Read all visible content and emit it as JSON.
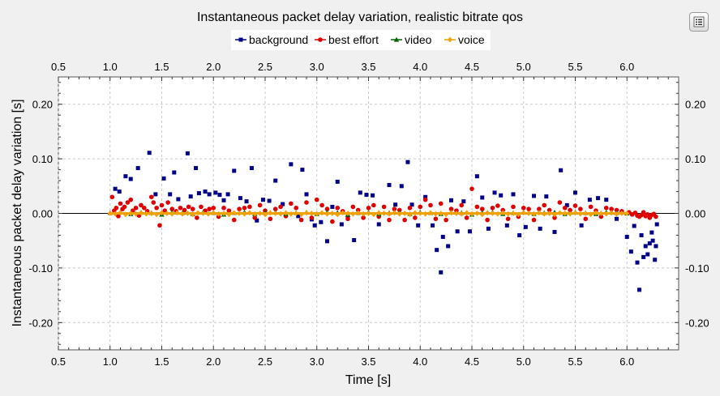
{
  "chart_data": {
    "type": "scatter",
    "title": "Instantaneous packet delay variation, realistic bitrate qos",
    "xlabel": "Time [s]",
    "ylabel": "Instantaneous packet delay variation [s]",
    "xlim": [
      0.5,
      6.5
    ],
    "ylim": [
      -0.25,
      0.25
    ],
    "xticks": [
      "0.5",
      "1.0",
      "1.5",
      "2.0",
      "2.5",
      "3.0",
      "3.5",
      "4.0",
      "4.5",
      "5.0",
      "5.5",
      "6.0"
    ],
    "yticks": [
      "0.20",
      "0.10",
      "0.00",
      "-0.10",
      "-0.20"
    ],
    "grid": true,
    "legend_position": "top-center",
    "series": [
      {
        "name": "background",
        "color": "#00008b",
        "marker": "square",
        "x": [
          1.05,
          1.09,
          1.15,
          1.2,
          1.27,
          1.38,
          1.44,
          1.52,
          1.58,
          1.62,
          1.66,
          1.75,
          1.78,
          1.83,
          1.86,
          1.92,
          1.96,
          2.02,
          2.06,
          2.1,
          2.14,
          2.2,
          2.26,
          2.32,
          2.37,
          2.42,
          2.48,
          2.54,
          2.6,
          2.67,
          2.75,
          2.82,
          2.86,
          2.9,
          2.95,
          2.98,
          3.04,
          3.1,
          3.15,
          3.2,
          3.24,
          3.3,
          3.36,
          3.42,
          3.48,
          3.54,
          3.6,
          3.7,
          3.76,
          3.82,
          3.88,
          3.92,
          3.98,
          4.05,
          4.12,
          4.16,
          4.2,
          4.22,
          4.27,
          4.3,
          4.36,
          4.42,
          4.48,
          4.55,
          4.6,
          4.66,
          4.72,
          4.78,
          4.84,
          4.9,
          4.96,
          5.02,
          5.1,
          5.16,
          5.22,
          5.3,
          5.36,
          5.42,
          5.5,
          5.56,
          5.64,
          5.72,
          5.8,
          5.9,
          6.0,
          6.04,
          6.07,
          6.1,
          6.12,
          6.14,
          6.16,
          6.18,
          6.2,
          6.22,
          6.24,
          6.25,
          6.27,
          6.28,
          6.29
        ],
        "y": [
          0.045,
          0.04,
          0.068,
          0.063,
          0.083,
          0.111,
          0.035,
          0.064,
          0.035,
          0.075,
          0.026,
          0.11,
          0.031,
          0.083,
          0.037,
          0.04,
          0.035,
          0.038,
          0.034,
          0.024,
          0.035,
          0.078,
          0.028,
          0.022,
          0.083,
          -0.013,
          0.025,
          0.023,
          0.06,
          0.017,
          0.09,
          -0.005,
          0.08,
          0.035,
          -0.011,
          -0.022,
          -0.016,
          -0.051,
          0.012,
          0.058,
          -0.02,
          -0.008,
          -0.049,
          0.038,
          0.034,
          0.033,
          -0.02,
          0.052,
          0.016,
          0.05,
          0.094,
          0.016,
          -0.022,
          0.03,
          -0.022,
          -0.067,
          -0.108,
          -0.043,
          -0.06,
          0.024,
          -0.033,
          0.022,
          -0.033,
          0.068,
          0.029,
          -0.028,
          0.038,
          0.033,
          -0.022,
          0.035,
          -0.04,
          -0.025,
          0.032,
          -0.028,
          0.031,
          -0.034,
          0.079,
          0.015,
          0.038,
          -0.022,
          0.025,
          0.028,
          0.025,
          -0.01,
          -0.043,
          -0.07,
          -0.023,
          -0.09,
          -0.14,
          -0.04,
          -0.08,
          -0.06,
          -0.075,
          -0.055,
          -0.035,
          -0.05,
          -0.085,
          -0.06,
          -0.02
        ]
      },
      {
        "name": "best effort",
        "color": "#e00000",
        "marker": "circle",
        "x": [
          1.02,
          1.04,
          1.06,
          1.08,
          1.1,
          1.12,
          1.14,
          1.17,
          1.2,
          1.22,
          1.25,
          1.28,
          1.3,
          1.33,
          1.36,
          1.4,
          1.42,
          1.45,
          1.48,
          1.5,
          1.53,
          1.56,
          1.6,
          1.64,
          1.68,
          1.72,
          1.76,
          1.8,
          1.84,
          1.88,
          1.92,
          1.96,
          2.0,
          2.05,
          2.1,
          2.15,
          2.2,
          2.25,
          2.3,
          2.35,
          2.4,
          2.45,
          2.5,
          2.55,
          2.6,
          2.65,
          2.7,
          2.75,
          2.8,
          2.85,
          2.9,
          2.95,
          3.0,
          3.05,
          3.1,
          3.15,
          3.2,
          3.25,
          3.3,
          3.35,
          3.4,
          3.45,
          3.5,
          3.55,
          3.6,
          3.65,
          3.7,
          3.75,
          3.8,
          3.85,
          3.9,
          3.95,
          4.0,
          4.05,
          4.1,
          4.15,
          4.2,
          4.25,
          4.3,
          4.35,
          4.4,
          4.45,
          4.5,
          4.55,
          4.6,
          4.65,
          4.7,
          4.75,
          4.8,
          4.85,
          4.9,
          4.95,
          5.0,
          5.05,
          5.1,
          5.15,
          5.2,
          5.25,
          5.3,
          5.35,
          5.4,
          5.45,
          5.5,
          5.55,
          5.6,
          5.65,
          5.7,
          5.75,
          5.8,
          5.85,
          5.9,
          5.95,
          6.02,
          6.05,
          6.08,
          6.1,
          6.12,
          6.14,
          6.16,
          6.18,
          6.2,
          6.22,
          6.24,
          6.26,
          6.28
        ],
        "y": [
          0.03,
          0.005,
          0.01,
          -0.005,
          0.018,
          0.008,
          0.012,
          0.02,
          0.025,
          0.005,
          0.01,
          -0.004,
          0.015,
          0.01,
          0.004,
          0.03,
          0.02,
          0.01,
          -0.022,
          0.015,
          0.005,
          0.02,
          0.008,
          0.004,
          0.01,
          0.006,
          0.012,
          0.008,
          -0.008,
          0.012,
          0.005,
          0.008,
          0.01,
          -0.006,
          0.01,
          0.005,
          -0.012,
          0.008,
          0.01,
          0.012,
          -0.008,
          0.015,
          0.005,
          -0.01,
          0.008,
          0.012,
          -0.005,
          0.018,
          0.01,
          -0.012,
          0.02,
          -0.008,
          0.025,
          0.015,
          0.008,
          -0.015,
          0.01,
          0.004,
          -0.01,
          0.012,
          0.006,
          -0.008,
          0.01,
          0.015,
          -0.006,
          0.012,
          -0.012,
          0.008,
          0.006,
          -0.012,
          0.01,
          -0.008,
          0.012,
          0.025,
          0.015,
          -0.01,
          0.018,
          -0.012,
          0.008,
          0.005,
          0.015,
          -0.008,
          0.045,
          0.012,
          0.008,
          -0.012,
          0.01,
          0.014,
          0.006,
          -0.01,
          0.012,
          -0.006,
          0.01,
          0.008,
          -0.012,
          0.008,
          0.015,
          0.006,
          -0.008,
          0.02,
          0.01,
          0.006,
          0.014,
          0.008,
          -0.01,
          0.012,
          0.005,
          -0.006,
          0.01,
          0.008,
          0.006,
          0.004,
          0.002,
          -0.002,
          0.001,
          -0.004,
          -0.006,
          -0.003,
          0.002,
          -0.005,
          -0.002,
          -0.008,
          -0.003,
          -0.001,
          -0.006
        ]
      },
      {
        "name": "video",
        "color": "#006400",
        "marker": "triangle",
        "x": [
          1.0,
          1.1,
          1.2,
          1.3,
          1.4,
          1.5,
          1.6,
          1.7,
          1.8,
          1.9,
          2.0,
          2.1,
          2.2,
          2.3,
          2.4,
          2.5,
          2.6,
          2.7,
          2.8,
          2.9,
          3.0,
          3.1,
          3.2,
          3.3,
          3.4,
          3.5,
          3.6,
          3.7,
          3.8,
          3.9,
          4.0,
          4.1,
          4.2,
          4.3,
          4.4,
          4.5,
          4.6,
          4.7,
          4.8,
          4.9,
          5.0,
          5.1,
          5.2,
          5.3,
          5.4,
          5.5,
          5.6,
          5.7,
          5.8,
          5.9,
          6.0
        ],
        "y": [
          0.001,
          0.002,
          -0.001,
          0.002,
          0.001,
          -0.002,
          0.002,
          0.001,
          -0.001,
          0.002,
          0.001,
          -0.002,
          0.001,
          0.002,
          -0.001,
          0.001,
          0.002,
          -0.001,
          0.001,
          0.002,
          -0.001,
          0.002,
          0.001,
          -0.002,
          0.001,
          0.002,
          -0.001,
          0.001,
          0.002,
          -0.001,
          0.002,
          0.001,
          -0.001,
          0.002,
          0.001,
          -0.002,
          0.001,
          0.002,
          -0.001,
          0.001,
          0.002,
          -0.001,
          0.001,
          0.002,
          -0.001,
          0.002,
          0.001,
          -0.001,
          0.002,
          0.001,
          0.0
        ]
      },
      {
        "name": "voice",
        "color": "#f0a000",
        "marker": "diamond",
        "x": [
          1.0,
          1.05,
          1.1,
          1.15,
          1.2,
          1.25,
          1.3,
          1.35,
          1.4,
          1.45,
          1.5,
          1.55,
          1.6,
          1.65,
          1.7,
          1.75,
          1.8,
          1.85,
          1.9,
          1.95,
          2.0,
          2.05,
          2.1,
          2.15,
          2.2,
          2.25,
          2.3,
          2.35,
          2.4,
          2.45,
          2.5,
          2.55,
          2.6,
          2.65,
          2.7,
          2.75,
          2.8,
          2.85,
          2.9,
          2.95,
          3.0,
          3.05,
          3.1,
          3.15,
          3.2,
          3.25,
          3.3,
          3.35,
          3.4,
          3.45,
          3.5,
          3.55,
          3.6,
          3.65,
          3.7,
          3.75,
          3.8,
          3.85,
          3.9,
          3.95,
          4.0,
          4.05,
          4.1,
          4.15,
          4.2,
          4.25,
          4.3,
          4.35,
          4.4,
          4.45,
          4.5,
          4.55,
          4.6,
          4.65,
          4.7,
          4.75,
          4.8,
          4.85,
          4.9,
          4.95,
          5.0,
          5.05,
          5.1,
          5.15,
          5.2,
          5.25,
          5.3,
          5.35,
          5.4,
          5.45,
          5.5,
          5.55,
          5.6,
          5.65,
          5.7,
          5.75,
          5.8,
          5.85,
          5.9,
          5.95,
          6.0
        ],
        "y": [
          0.0,
          -0.001,
          0.001,
          -0.002,
          0.0,
          -0.001,
          0.001,
          -0.001,
          0.0,
          -0.002,
          0.001,
          0.0,
          -0.001,
          0.001,
          -0.001,
          0.0,
          -0.002,
          0.001,
          0.0,
          -0.001,
          0.001,
          -0.001,
          0.0,
          -0.002,
          0.001,
          0.0,
          -0.001,
          0.001,
          -0.001,
          0.0,
          -0.002,
          0.001,
          0.0,
          -0.001,
          0.001,
          -0.001,
          0.0,
          -0.002,
          0.001,
          0.0,
          -0.001,
          0.001,
          -0.001,
          0.0,
          -0.002,
          0.001,
          0.0,
          -0.001,
          0.001,
          -0.001,
          0.0,
          -0.002,
          0.001,
          0.0,
          -0.001,
          0.001,
          -0.001,
          0.0,
          -0.002,
          0.001,
          0.0,
          -0.001,
          0.001,
          -0.001,
          0.0,
          -0.002,
          0.001,
          0.0,
          -0.001,
          0.001,
          -0.001,
          0.0,
          -0.002,
          0.001,
          0.0,
          -0.001,
          0.001,
          -0.001,
          0.0,
          -0.002,
          0.001,
          0.0,
          -0.001,
          0.001,
          -0.001,
          0.0,
          -0.002,
          0.001,
          0.0,
          -0.001,
          0.001,
          -0.001,
          0.0,
          -0.002,
          0.001,
          0.0,
          -0.001,
          0.001,
          -0.001,
          0.0,
          0.0
        ]
      }
    ]
  },
  "toolbar": {
    "menu_icon": "list-menu-icon"
  }
}
